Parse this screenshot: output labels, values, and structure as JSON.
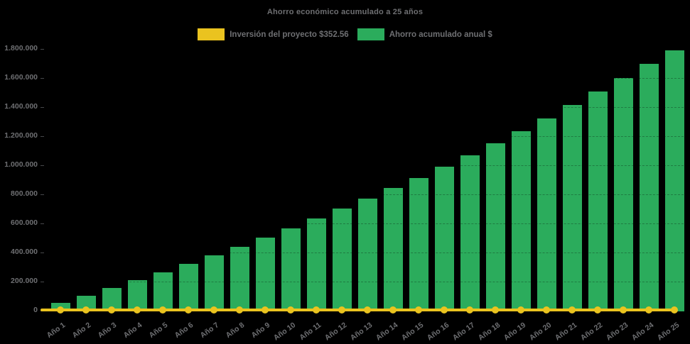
{
  "colors": {
    "background": "#000000",
    "text": "#6E6F72",
    "bar_green": "#2BAC5C",
    "line_yellow": "#EAC31F"
  },
  "chart_data": {
    "type": "bar",
    "title": "Ahorro económico acumulado a 25 años",
    "categories": [
      "Año 1",
      "Año 2",
      "Año 3",
      "Año 4",
      "Año 5",
      "Año 6",
      "Año 7",
      "Año 8",
      "Año 9",
      "Año 10",
      "Año 11",
      "Año 12",
      "Año 13",
      "Año 14",
      "Año 15",
      "Año 16",
      "Año 17",
      "Año 18",
      "Año 19",
      "Año 20",
      "Año 21",
      "Año 22",
      "Año 23",
      "Año 24",
      "Año 25"
    ],
    "series": [
      {
        "name": "Inversión del proyecto $352.56",
        "type": "line",
        "color": "#EAC31F",
        "constant_value": 352.56,
        "values": [
          352.56,
          352.56,
          352.56,
          352.56,
          352.56,
          352.56,
          352.56,
          352.56,
          352.56,
          352.56,
          352.56,
          352.56,
          352.56,
          352.56,
          352.56,
          352.56,
          352.56,
          352.56,
          352.56,
          352.56,
          352.56,
          352.56,
          352.56,
          352.56,
          352.56
        ]
      },
      {
        "name": "Ahorro acumulado anual $",
        "type": "bar",
        "color": "#2BAC5C",
        "values": [
          50000,
          100000,
          152000,
          207000,
          263000,
          320000,
          379000,
          437000,
          498000,
          563000,
          632000,
          700000,
          769000,
          840000,
          912000,
          990000,
          1067000,
          1150000,
          1234000,
          1322000,
          1412000,
          1505000,
          1598000,
          1695000,
          1790000
        ]
      }
    ],
    "xlabel": "",
    "ylabel": "",
    "ylim": [
      0,
      1800000
    ],
    "ytick_step": 200000,
    "ytick_labels": [
      "0",
      "200.000",
      "400.000",
      "600.000",
      "800.000",
      "1.000.000",
      "1.200.000",
      "1.400.000",
      "1.600.000",
      "1.800.000"
    ],
    "legend_position": "top-center",
    "grid": "faint dark dashes visible over bars only",
    "x_label_rotation_deg": -36
  }
}
